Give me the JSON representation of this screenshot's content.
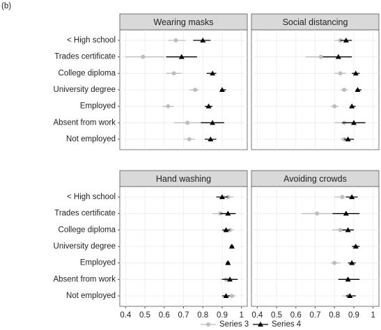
{
  "panel_label": "(b)",
  "chart_data": [
    {
      "type": "dot",
      "title": "Wearing masks",
      "categories": [
        "< High school",
        "Trades certificate",
        "College diploma",
        "University degree",
        "Employed",
        "Absent from work",
        "Not employed"
      ],
      "xlim": [
        0.37,
        1.03
      ],
      "xticks": [
        0.4,
        0.5,
        0.6,
        0.7,
        0.8,
        0.9,
        1
      ],
      "grid": true,
      "series": [
        {
          "name": "Series 3",
          "color": "#bdbdbd",
          "values": [
            0.66,
            0.49,
            0.65,
            0.76,
            0.62,
            0.72,
            0.73
          ],
          "lower": [
            0.62,
            0.4,
            0.61,
            0.73,
            0.59,
            0.65,
            0.7
          ],
          "upper": [
            0.71,
            0.6,
            0.69,
            0.78,
            0.65,
            0.79,
            0.76
          ]
        },
        {
          "name": "Series 4",
          "color": "#000000",
          "values": [
            0.8,
            0.69,
            0.85,
            0.9,
            0.83,
            0.85,
            0.84
          ],
          "lower": [
            0.75,
            0.61,
            0.82,
            0.89,
            0.81,
            0.79,
            0.81
          ],
          "upper": [
            0.84,
            0.77,
            0.87,
            0.92,
            0.85,
            0.91,
            0.87
          ]
        }
      ]
    },
    {
      "type": "dot",
      "title": "Social distancing",
      "categories": [
        "< High school",
        "Trades certificate",
        "College diploma",
        "University degree",
        "Employed",
        "Absent from work",
        "Not employed"
      ],
      "xlim": [
        0.37,
        1.03
      ],
      "xticks": [
        0.4,
        0.5,
        0.6,
        0.7,
        0.8,
        0.9,
        1
      ],
      "grid": true,
      "series": [
        {
          "name": "Series 3",
          "color": "#bdbdbd",
          "values": [
            0.83,
            0.73,
            0.83,
            0.85,
            0.8,
            0.85,
            0.85
          ],
          "lower": [
            0.8,
            0.65,
            0.8,
            0.83,
            0.78,
            0.8,
            0.83
          ],
          "upper": [
            0.87,
            0.81,
            0.86,
            0.87,
            0.82,
            0.9,
            0.87
          ]
        },
        {
          "name": "Series 4",
          "color": "#000000",
          "values": [
            0.86,
            0.82,
            0.91,
            0.92,
            0.89,
            0.9,
            0.87
          ],
          "lower": [
            0.83,
            0.74,
            0.89,
            0.91,
            0.88,
            0.84,
            0.85
          ],
          "upper": [
            0.89,
            0.89,
            0.93,
            0.94,
            0.91,
            0.96,
            0.9
          ]
        }
      ]
    },
    {
      "type": "dot",
      "title": "Hand washing",
      "categories": [
        "< High school",
        "Trades certificate",
        "College diploma",
        "University degree",
        "Employed",
        "Absent from work",
        "Not employed"
      ],
      "xlim": [
        0.37,
        1.03
      ],
      "xticks": [
        0.4,
        0.5,
        0.6,
        0.7,
        0.8,
        0.9,
        1
      ],
      "grid": true,
      "series": [
        {
          "name": "Series 3",
          "color": "#bdbdbd",
          "values": [
            0.93,
            0.89,
            0.94,
            0.95,
            0.93,
            0.92,
            0.95
          ],
          "lower": [
            0.9,
            0.85,
            0.92,
            0.94,
            0.92,
            0.89,
            0.93
          ],
          "upper": [
            0.96,
            0.93,
            0.96,
            0.96,
            0.94,
            0.95,
            0.97
          ]
        },
        {
          "name": "Series 4",
          "color": "#000000",
          "values": [
            0.9,
            0.93,
            0.92,
            0.95,
            0.93,
            0.94,
            0.92
          ],
          "lower": [
            0.87,
            0.89,
            0.9,
            0.94,
            0.92,
            0.9,
            0.9
          ],
          "upper": [
            0.93,
            0.97,
            0.94,
            0.96,
            0.94,
            0.98,
            0.94
          ]
        }
      ]
    },
    {
      "type": "dot",
      "title": "Avoiding crowds",
      "categories": [
        "< High school",
        "Trades certificate",
        "College diploma",
        "University degree",
        "Employed",
        "Absent from work",
        "Not employed"
      ],
      "xlim": [
        0.37,
        1.03
      ],
      "xticks": [
        0.4,
        0.5,
        0.6,
        0.7,
        0.8,
        0.9,
        1
      ],
      "grid": true,
      "series": [
        {
          "name": "Series 3",
          "color": "#bdbdbd",
          "values": [
            0.84,
            0.71,
            0.83,
            0.91,
            0.8,
            0.87,
            0.87
          ],
          "lower": [
            0.8,
            0.63,
            0.79,
            0.89,
            0.78,
            0.82,
            0.84
          ],
          "upper": [
            0.88,
            0.79,
            0.87,
            0.93,
            0.83,
            0.92,
            0.9
          ]
        },
        {
          "name": "Series 4",
          "color": "#000000",
          "values": [
            0.89,
            0.86,
            0.87,
            0.91,
            0.89,
            0.87,
            0.88
          ],
          "lower": [
            0.86,
            0.79,
            0.84,
            0.89,
            0.87,
            0.82,
            0.86
          ],
          "upper": [
            0.92,
            0.93,
            0.9,
            0.93,
            0.91,
            0.93,
            0.91
          ]
        }
      ]
    }
  ]
}
